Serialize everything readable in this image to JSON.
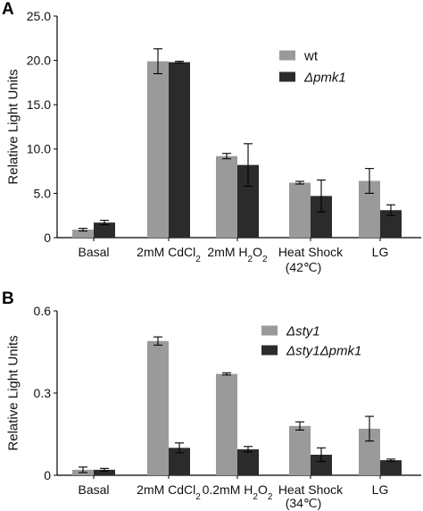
{
  "colors": {
    "light": "#9a9a9a",
    "dark": "#2b2b2b",
    "axis": "#000000"
  },
  "chart_data": [
    {
      "panel": "A",
      "type": "bar",
      "ylabel": "Relative Light Units",
      "ylim": [
        0,
        25
      ],
      "yticks": [
        0,
        5,
        10,
        15,
        20,
        25
      ],
      "ytick_labels": [
        "0",
        "5.0",
        "10.0",
        "15.0",
        "20.0",
        "25.0"
      ],
      "legend_position": "top-right",
      "categories": [
        {
          "label": "Basal"
        },
        {
          "label": "2mM CdCl",
          "sub": "2"
        },
        {
          "label": "2mM H",
          "sub": "2",
          "label2": "O",
          "sub2": "2"
        },
        {
          "label": "Heat Shock",
          "line2": "(42℃)"
        },
        {
          "label": "LG"
        }
      ],
      "series": [
        {
          "name": "wt",
          "italic": false,
          "color_key": "light",
          "values": [
            0.9,
            19.9,
            9.2,
            6.2,
            6.4
          ],
          "errors": [
            0.15,
            1.4,
            0.3,
            0.15,
            1.4
          ]
        },
        {
          "name": "Δpmk1",
          "italic": true,
          "color_key": "dark",
          "values": [
            1.7,
            19.8,
            8.2,
            4.7,
            3.1
          ],
          "errors": [
            0.25,
            0.1,
            2.4,
            1.8,
            0.6
          ]
        }
      ]
    },
    {
      "panel": "B",
      "type": "bar",
      "ylabel": "Relative Light Units",
      "ylim": [
        0,
        0.6
      ],
      "yticks": [
        0,
        0.3,
        0.6
      ],
      "ytick_labels": [
        "0",
        "0.3",
        "0.6"
      ],
      "legend_position": "top-right",
      "categories": [
        {
          "label": "Basal"
        },
        {
          "label": "2mM CdCl",
          "sub": "2"
        },
        {
          "label": "0.2mM H",
          "sub": "2",
          "label2": "O",
          "sub2": "2"
        },
        {
          "label": "Heat Shock",
          "line2": "(34℃)"
        },
        {
          "label": "LG"
        }
      ],
      "series": [
        {
          "name": "Δsty1",
          "italic": true,
          "color_key": "light",
          "values": [
            0.02,
            0.49,
            0.37,
            0.18,
            0.17
          ],
          "errors": [
            0.01,
            0.015,
            0.004,
            0.015,
            0.045
          ]
        },
        {
          "name": "Δsty1Δpmk1",
          "italic": true,
          "color_key": "dark",
          "values": [
            0.02,
            0.1,
            0.095,
            0.075,
            0.055
          ],
          "errors": [
            0.005,
            0.018,
            0.01,
            0.025,
            0.004
          ]
        }
      ]
    }
  ]
}
